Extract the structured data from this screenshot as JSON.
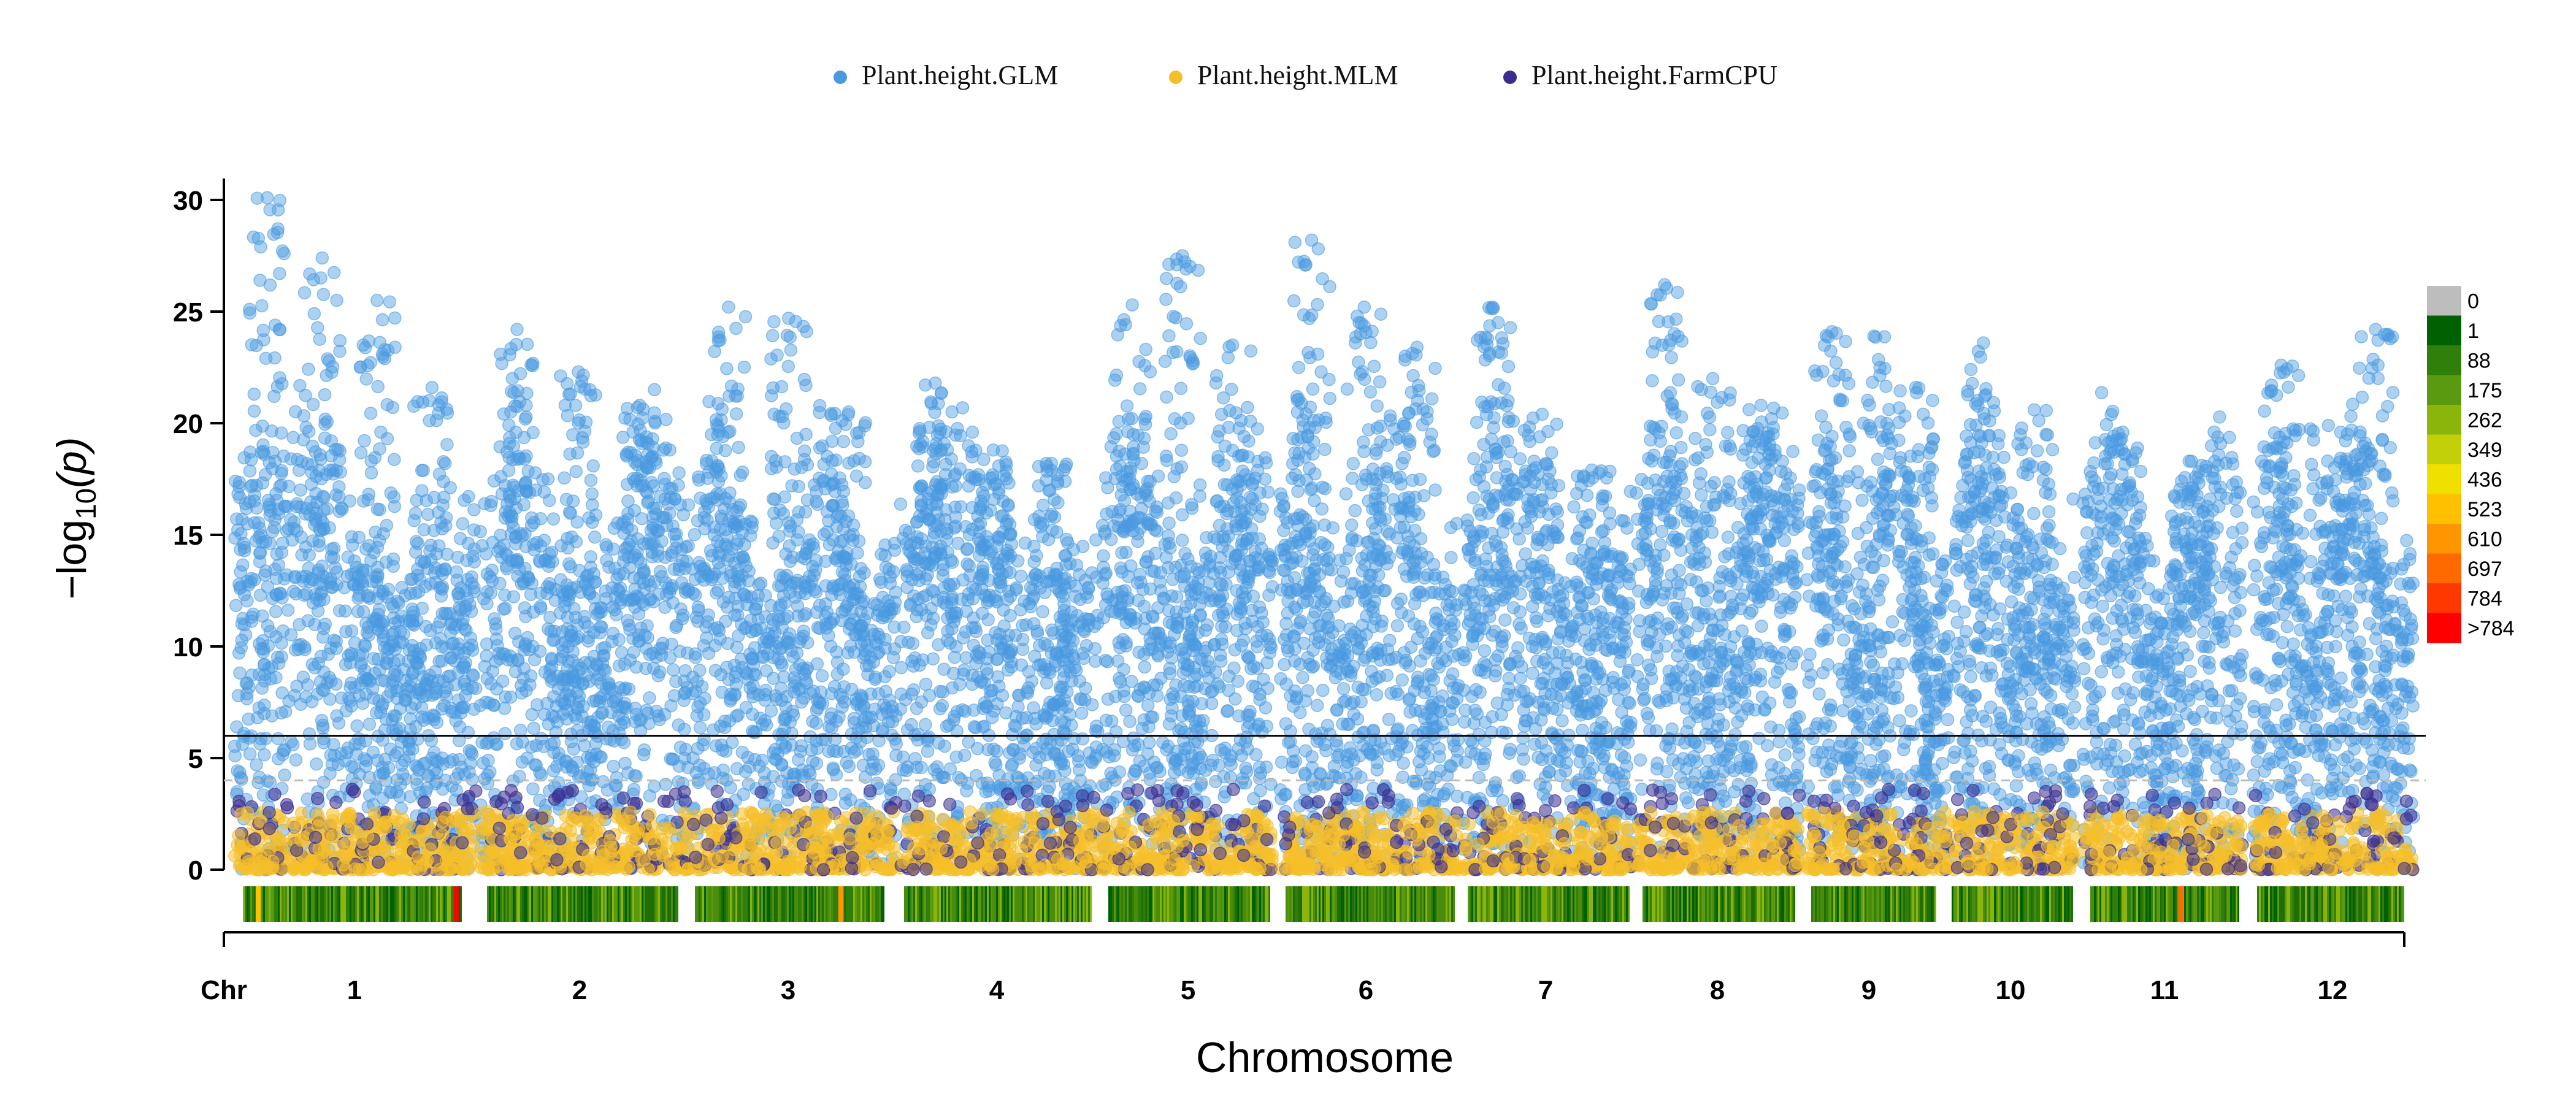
{
  "chart_data": {
    "type": "scatter",
    "subtype": "manhattan",
    "legend_position": "top-center",
    "series": [
      {
        "name": "Plant.height.GLM",
        "color": "#4a9ae0"
      },
      {
        "name": "Plant.height.MLM",
        "color": "#f5bf2a"
      },
      {
        "name": "Plant.height.FarmCPU",
        "color": "#3b2d8f"
      }
    ],
    "xlabel": "Chromosome",
    "x_axis_prefix": "Chr",
    "chromosomes": [
      "1",
      "2",
      "3",
      "4",
      "5",
      "6",
      "7",
      "8",
      "9",
      "10",
      "11",
      "12"
    ],
    "ylabel_main": "−log",
    "ylabel_sub": "10",
    "ylabel_var": "(p)",
    "ylim": [
      0,
      30
    ],
    "yticks": [
      0,
      5,
      10,
      15,
      20,
      25,
      30
    ],
    "threshold_solid": 6,
    "threshold_dashed": 4,
    "glm_peak_heights": [
      [
        30.1,
        27.4,
        25.5,
        21.6
      ],
      [
        24.2,
        22.3,
        20.8
      ],
      [
        25.2,
        24.7,
        20.5
      ],
      [
        21.8,
        18.8,
        18.2
      ],
      [
        25.3,
        27.5,
        23.5
      ],
      [
        28.2,
        25.2,
        23.4
      ],
      [
        25.2,
        20.4,
        17.9
      ],
      [
        26.2,
        22.0,
        20.8
      ],
      [
        24.1,
        23.9,
        21.6
      ],
      [
        23.6,
        20.6
      ],
      [
        19.6,
        18.3
      ],
      [
        22.6,
        19.9,
        24.2
      ]
    ],
    "density_legend": {
      "labels": [
        "0",
        "1",
        "88",
        "175",
        "262",
        "349",
        "436",
        "523",
        "610",
        "697",
        "784",
        ">784"
      ],
      "colors": [
        "#bdbdbd",
        "#006100",
        "#2f7f0a",
        "#5a9a10",
        "#8cb50c",
        "#c2d00a",
        "#f0e000",
        "#ffc000",
        "#ff9500",
        "#ff6a00",
        "#ff3800",
        "#ff0000"
      ]
    }
  }
}
